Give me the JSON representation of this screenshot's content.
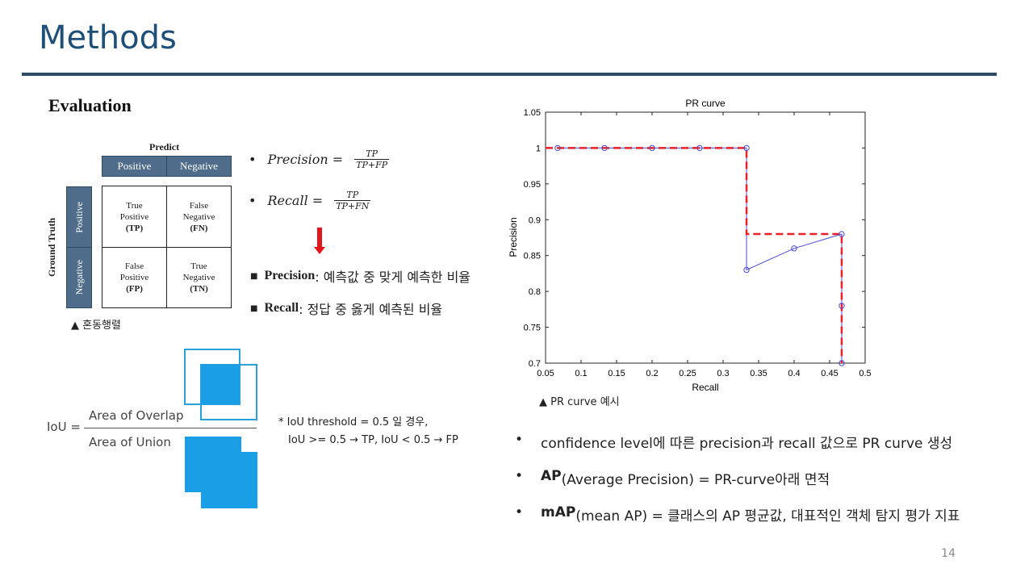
{
  "title": "Methods",
  "section": "Evaluation",
  "matrix": {
    "predict_label": "Predict",
    "truth_label": "Ground Truth",
    "col_headers": [
      "Positive",
      "Negative"
    ],
    "row_headers": [
      "Positive",
      "Negative"
    ],
    "cells": [
      {
        "name": "True Positive",
        "line1": "True",
        "line2": "Positive",
        "abbr": "(TP)"
      },
      {
        "name": "False Negative",
        "line1": "False",
        "line2": "Negative",
        "abbr": "(FN)"
      },
      {
        "name": "False Positive",
        "line1": "False",
        "line2": "Positive",
        "abbr": "(FP)"
      },
      {
        "name": "True Negative",
        "line1": "True",
        "line2": "Negative",
        "abbr": "(TN)"
      }
    ],
    "caption": "▲ 혼동행렬"
  },
  "formulas": {
    "precision_lhs": "Precision =",
    "precision_num": "TP",
    "precision_den": "TP+FP",
    "recall_lhs": "Recall =",
    "recall_num": "TP",
    "recall_den": "TP+FN"
  },
  "definitions": {
    "precision_term": "Precision",
    "precision_text": ": 예측값 중 맞게 예측한 비율",
    "recall_term": "Recall",
    "recall_text": ": 정답 중 옳게 예측된 비율"
  },
  "iou": {
    "label": "IoU =",
    "numerator": "Area of Overlap",
    "denominator": "Area of Union",
    "note_line1": "* IoU threshold = 0.5 일 경우,",
    "note_line2": "IoU >= 0.5 → TP, IoU < 0.5 → FP",
    "colors": {
      "fill": "#1a9ee6",
      "outline": "#2a9fd8"
    }
  },
  "chart_data": {
    "type": "line",
    "title": "PR curve",
    "xlabel": "Recall",
    "ylabel": "Precision",
    "xlim": [
      0.05,
      0.5
    ],
    "ylim": [
      0.7,
      1.05
    ],
    "xticks": [
      "0.05",
      "0.1",
      "0.15",
      "0.2",
      "0.25",
      "0.3",
      "0.35",
      "0.4",
      "0.45",
      "0.5"
    ],
    "yticks": [
      "0.7",
      "0.75",
      "0.8",
      "0.85",
      "0.9",
      "0.95",
      "1",
      "1.05"
    ],
    "grid": false,
    "series": [
      {
        "style": "solid-markers",
        "color": "#4b4bd6",
        "x": [
          0.067,
          0.133,
          0.2,
          0.267,
          0.333,
          0.333,
          0.4,
          0.467,
          0.467,
          0.467
        ],
        "y": [
          1.0,
          1.0,
          1.0,
          1.0,
          1.0,
          0.83,
          0.86,
          0.88,
          0.78,
          0.7
        ]
      },
      {
        "style": "dashed",
        "color": "#e8202a",
        "x": [
          0.05,
          0.333,
          0.333,
          0.467,
          0.467
        ],
        "y": [
          1.0,
          1.0,
          0.88,
          0.88,
          0.7
        ]
      }
    ],
    "caption": "▲ PR curve 예시"
  },
  "bullets": [
    {
      "bold": "",
      "text": "confidence level에 따른 precision과 recall 값으로 PR curve 생성"
    },
    {
      "bold": "AP",
      "text": "(Average Precision) = PR-curve아래 면적"
    },
    {
      "bold": "mAP",
      "text": "(mean AP) = 클래스의 AP 평균값, 대표적인 객체 탐지 평가 지표"
    }
  ],
  "page_number": "14"
}
